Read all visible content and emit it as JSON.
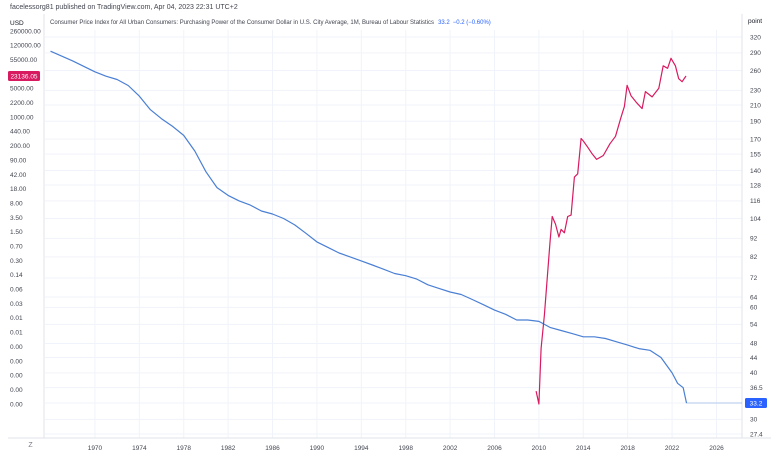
{
  "header": {
    "publisher": "facelessorg81 published on TradingView.com, Apr 04, 2023 22:31 UTC+2"
  },
  "legend": {
    "title": "Consumer Price Index for All Urban Consumers: Purchasing Power of the Consumer Dollar in U.S. City Average, 1M, Bureau of Labour Statistics",
    "value": "33.2",
    "change": "−0.2 (−0.60%)"
  },
  "colors": {
    "cpi_line": "#4a7fd4",
    "usd_line": "#d81b60",
    "cpi_badge": "#2962ff",
    "usd_badge": "#d81b60"
  },
  "chart_data": {
    "type": "line",
    "left_axis": {
      "unit_label": "USD",
      "scale": "log",
      "tick_labels": [
        "260000.00",
        "120000.00",
        "55000.00",
        "11000.00",
        "5000.00",
        "2200.00",
        "1000.00",
        "440.00",
        "200.00",
        "90.00",
        "42.00",
        "18.00",
        "8.00",
        "3.50",
        "1.50",
        "0.70",
        "0.30",
        "0.14",
        "0.06",
        "0.03",
        "0.01",
        "0.01",
        "0.00",
        "0.00",
        "0.00",
        "0.00",
        "0.00"
      ],
      "badge": "23136.05"
    },
    "right_axis": {
      "unit_label": "point",
      "scale": "log",
      "tick_labels": [
        "320",
        "290",
        "260",
        "230",
        "210",
        "190",
        "170",
        "155",
        "140",
        "128",
        "116",
        "104",
        "92",
        "82",
        "72",
        "64",
        "60",
        "54",
        "48",
        "44",
        "40",
        "36.5",
        "33.2",
        "30",
        "27.4"
      ],
      "badge": "33.2"
    },
    "x_axis": {
      "tick_labels": [
        "1970",
        "1974",
        "1978",
        "1982",
        "1986",
        "1990",
        "1994",
        "1998",
        "2002",
        "2006",
        "2010",
        "2014",
        "2018",
        "2022",
        "2026"
      ],
      "range": [
        1965.5,
        2028.3
      ]
    },
    "series": [
      {
        "axis": "right",
        "values": [
          [
            1966,
            293
          ],
          [
            1968,
            276
          ],
          [
            1970,
            258
          ],
          [
            1971,
            251
          ],
          [
            1972,
            246
          ],
          [
            1973,
            237
          ],
          [
            1974,
            222
          ],
          [
            1975,
            204
          ],
          [
            1976,
            193
          ],
          [
            1977,
            184
          ],
          [
            1978,
            174
          ],
          [
            1979,
            158
          ],
          [
            1980,
            139
          ],
          [
            1981,
            126
          ],
          [
            1982,
            120
          ],
          [
            1983,
            116
          ],
          [
            1984,
            113
          ],
          [
            1985,
            109
          ],
          [
            1986,
            107
          ],
          [
            1987,
            104
          ],
          [
            1988,
            100
          ],
          [
            1989,
            95
          ],
          [
            1990,
            90
          ],
          [
            1991,
            87
          ],
          [
            1992,
            84
          ],
          [
            1993,
            82
          ],
          [
            1994,
            80
          ],
          [
            1995,
            78
          ],
          [
            1996,
            76
          ],
          [
            1997,
            74
          ],
          [
            1998,
            73
          ],
          [
            1999,
            71.5
          ],
          [
            2000,
            69
          ],
          [
            2001,
            67.5
          ],
          [
            2002,
            66
          ],
          [
            2003,
            65
          ],
          [
            2004,
            63
          ],
          [
            2005,
            61
          ],
          [
            2006,
            59
          ],
          [
            2007,
            57.5
          ],
          [
            2008,
            55.5
          ],
          [
            2009,
            55.5
          ],
          [
            2010,
            55
          ],
          [
            2011,
            53
          ],
          [
            2012,
            52
          ],
          [
            2013,
            51
          ],
          [
            2014,
            50
          ],
          [
            2015,
            50
          ],
          [
            2016,
            49.5
          ],
          [
            2017,
            48.5
          ],
          [
            2018,
            47.5
          ],
          [
            2019,
            46.5
          ],
          [
            2020,
            46
          ],
          [
            2021,
            44
          ],
          [
            2022,
            40
          ],
          [
            2022.5,
            37.5
          ],
          [
            2023,
            36.5
          ],
          [
            2023.3,
            33.2
          ]
        ]
      },
      {
        "axis": "left",
        "values": [
          [
            2009.75,
            0.001
          ],
          [
            2010.0,
            0.0005
          ],
          [
            2010.2,
            0.01
          ],
          [
            2010.5,
            0.06
          ],
          [
            2010.7,
            0.3
          ],
          [
            2011.0,
            3
          ],
          [
            2011.2,
            12
          ],
          [
            2011.5,
            8
          ],
          [
            2011.8,
            4
          ],
          [
            2012.0,
            6
          ],
          [
            2012.3,
            5
          ],
          [
            2012.6,
            12
          ],
          [
            2012.9,
            13
          ],
          [
            2013.2,
            100
          ],
          [
            2013.5,
            120
          ],
          [
            2013.8,
            800
          ],
          [
            2014.0,
            700
          ],
          [
            2014.4,
            500
          ],
          [
            2014.8,
            350
          ],
          [
            2015.2,
            260
          ],
          [
            2015.8,
            320
          ],
          [
            2016.4,
            600
          ],
          [
            2016.9,
            900
          ],
          [
            2017.4,
            2500
          ],
          [
            2017.7,
            4500
          ],
          [
            2017.95,
            14000
          ],
          [
            2018.3,
            8000
          ],
          [
            2018.8,
            5500
          ],
          [
            2019.3,
            4000
          ],
          [
            2019.6,
            10000
          ],
          [
            2020.2,
            7500
          ],
          [
            2020.8,
            12000
          ],
          [
            2021.2,
            40000
          ],
          [
            2021.6,
            35000
          ],
          [
            2021.9,
            60000
          ],
          [
            2022.3,
            40000
          ],
          [
            2022.6,
            20000
          ],
          [
            2022.9,
            17000
          ],
          [
            2023.25,
            23136.05
          ]
        ]
      }
    ]
  }
}
